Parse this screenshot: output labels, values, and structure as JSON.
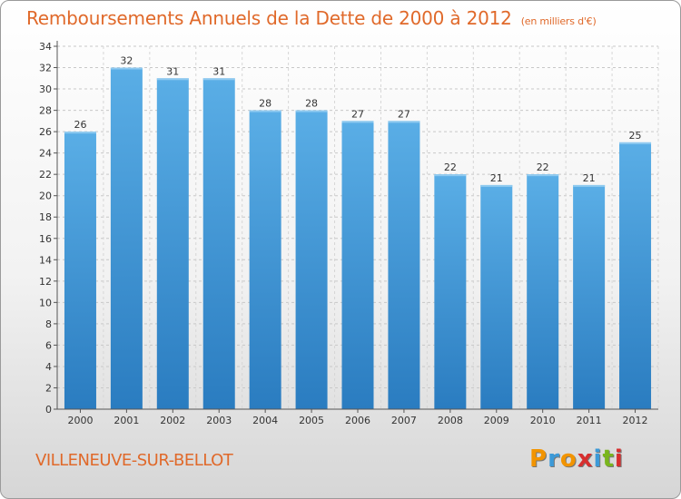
{
  "title": "Remboursements Annuels de la Dette de 2000 à 2012",
  "subtitle": "(en milliers d'€)",
  "commune": "VILLENEUVE-SUR-BELLOT",
  "logo": {
    "letters": [
      "P",
      "r",
      "o",
      "x",
      "i",
      "t",
      "i"
    ],
    "colors": [
      "#f29400",
      "#3c9ad8",
      "#f29400",
      "#d72f2f",
      "#3c9ad8",
      "#7ab51d",
      "#d72f2f"
    ]
  },
  "colors": {
    "title": "#e0692a",
    "bar_light": "#5aaee6",
    "bar_dark": "#2a7cc0"
  },
  "chart_data": {
    "type": "bar",
    "title": "Remboursements Annuels de la Dette de 2000 à 2012",
    "xlabel": "",
    "ylabel": "",
    "categories": [
      "2000",
      "2001",
      "2002",
      "2003",
      "2004",
      "2005",
      "2006",
      "2007",
      "2008",
      "2009",
      "2010",
      "2011",
      "2012"
    ],
    "values": [
      26,
      32,
      31,
      31,
      28,
      28,
      27,
      27,
      22,
      21,
      22,
      21,
      25
    ],
    "ylim": [
      0,
      34
    ],
    "yticks": [
      0,
      2,
      4,
      6,
      8,
      10,
      12,
      14,
      16,
      18,
      20,
      22,
      24,
      26,
      28,
      30,
      32,
      34
    ],
    "grid": true
  }
}
